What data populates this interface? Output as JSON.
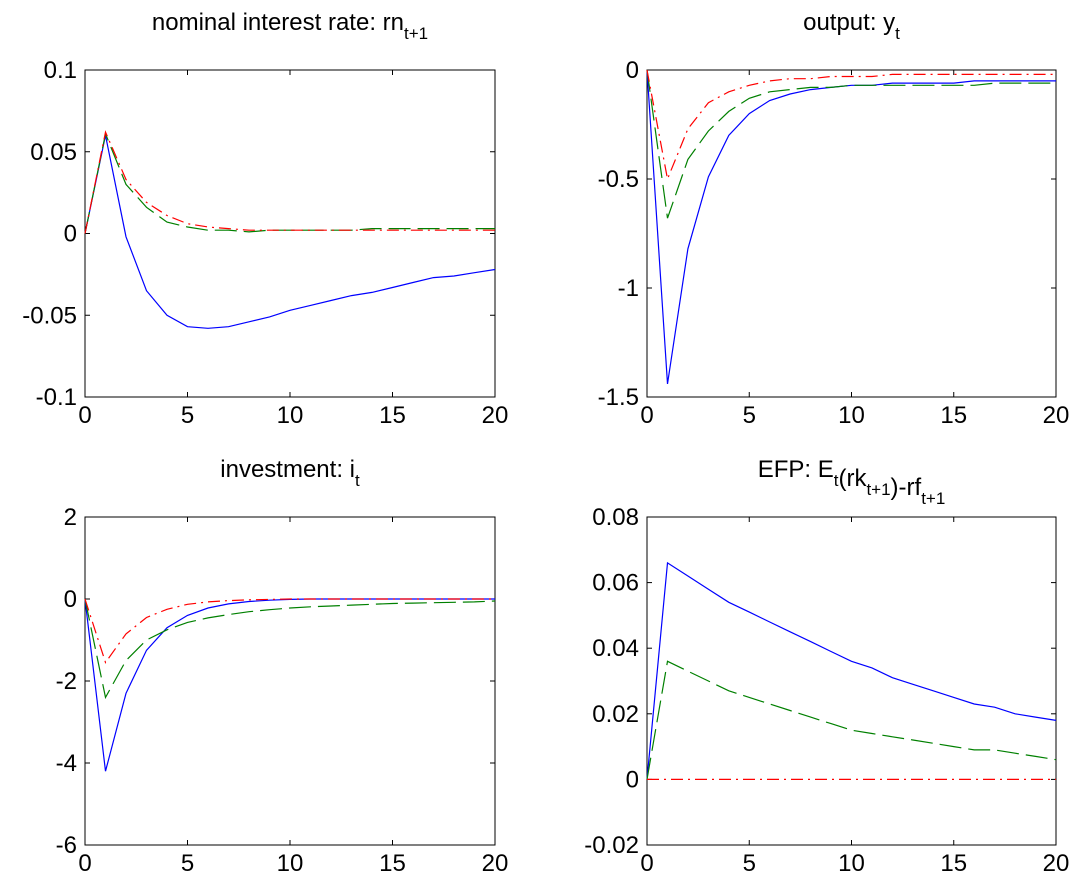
{
  "chart_data": [
    {
      "type": "line",
      "title": {
        "text": "nominal interest rate: rn",
        "sub": "t+1"
      },
      "xlim": [
        0,
        20
      ],
      "ylim": [
        -0.1,
        0.1
      ],
      "xticks": [
        0,
        5,
        10,
        15,
        20
      ],
      "xtick_labels": [
        "0",
        "5",
        "10",
        "15",
        "20"
      ],
      "yticks": [
        -0.1,
        -0.05,
        0,
        0.05,
        0.1
      ],
      "ytick_labels": [
        "-0.1",
        "-0.05",
        "0",
        "0.05",
        "0.1"
      ],
      "grid": false,
      "x": [
        0,
        1,
        2,
        3,
        4,
        5,
        6,
        7,
        8,
        9,
        10,
        11,
        12,
        13,
        14,
        15,
        16,
        17,
        18,
        19,
        20
      ],
      "series": [
        {
          "style": "solid",
          "color": "#0000ff",
          "values": [
            0,
            0.06,
            -0.002,
            -0.035,
            -0.05,
            -0.057,
            -0.058,
            -0.057,
            -0.054,
            -0.051,
            -0.047,
            -0.044,
            -0.041,
            -0.038,
            -0.036,
            -0.033,
            -0.03,
            -0.027,
            -0.026,
            -0.024,
            -0.022
          ]
        },
        {
          "style": "dashed",
          "color": "#008000",
          "values": [
            0,
            0.061,
            0.03,
            0.016,
            0.007,
            0.004,
            0.002,
            0.002,
            0.001,
            0.002,
            0.002,
            0.002,
            0.002,
            0.002,
            0.003,
            0.003,
            0.003,
            0.003,
            0.003,
            0.003,
            0.003
          ]
        },
        {
          "style": "dashdot",
          "color": "#ff0000",
          "values": [
            0,
            0.062,
            0.033,
            0.019,
            0.011,
            0.006,
            0.004,
            0.003,
            0.002,
            0.002,
            0.002,
            0.002,
            0.002,
            0.002,
            0.002,
            0.002,
            0.002,
            0.002,
            0.002,
            0.002,
            0.002
          ]
        }
      ]
    },
    {
      "type": "line",
      "title": {
        "text": "output: y",
        "sub": "t"
      },
      "xlim": [
        0,
        20
      ],
      "ylim": [
        -1.5,
        0
      ],
      "xticks": [
        0,
        5,
        10,
        15,
        20
      ],
      "xtick_labels": [
        "0",
        "5",
        "10",
        "15",
        "20"
      ],
      "yticks": [
        -1.5,
        -1,
        -0.5,
        0
      ],
      "ytick_labels": [
        "-1.5",
        "-1",
        "-0.5",
        "0"
      ],
      "grid": false,
      "x": [
        0,
        1,
        2,
        3,
        4,
        5,
        6,
        7,
        8,
        9,
        10,
        11,
        12,
        13,
        14,
        15,
        16,
        17,
        18,
        19,
        20
      ],
      "series": [
        {
          "style": "solid",
          "color": "#0000ff",
          "values": [
            0,
            -1.44,
            -0.82,
            -0.49,
            -0.3,
            -0.2,
            -0.14,
            -0.11,
            -0.09,
            -0.08,
            -0.07,
            -0.07,
            -0.06,
            -0.06,
            -0.06,
            -0.06,
            -0.05,
            -0.05,
            -0.05,
            -0.05,
            -0.05
          ]
        },
        {
          "style": "dashed",
          "color": "#008000",
          "values": [
            0,
            -0.68,
            -0.41,
            -0.28,
            -0.19,
            -0.13,
            -0.1,
            -0.09,
            -0.08,
            -0.08,
            -0.07,
            -0.07,
            -0.07,
            -0.07,
            -0.07,
            -0.07,
            -0.07,
            -0.06,
            -0.06,
            -0.06,
            -0.06
          ]
        },
        {
          "style": "dashdot",
          "color": "#ff0000",
          "values": [
            0,
            -0.5,
            -0.27,
            -0.15,
            -0.1,
            -0.07,
            -0.05,
            -0.04,
            -0.04,
            -0.03,
            -0.03,
            -0.03,
            -0.02,
            -0.02,
            -0.02,
            -0.02,
            -0.02,
            -0.02,
            -0.02,
            -0.02,
            -0.02
          ]
        }
      ]
    },
    {
      "type": "line",
      "title": {
        "text": "investment: i",
        "sub": "t"
      },
      "xlim": [
        0,
        20
      ],
      "ylim": [
        -6,
        2
      ],
      "xticks": [
        0,
        5,
        10,
        15,
        20
      ],
      "xtick_labels": [
        "0",
        "5",
        "10",
        "15",
        "20"
      ],
      "yticks": [
        -6,
        -4,
        -2,
        0,
        2
      ],
      "ytick_labels": [
        "-6",
        "-4",
        "-2",
        "0",
        "2"
      ],
      "grid": false,
      "x": [
        0,
        1,
        2,
        3,
        4,
        5,
        6,
        7,
        8,
        9,
        10,
        11,
        12,
        13,
        14,
        15,
        16,
        17,
        18,
        19,
        20
      ],
      "series": [
        {
          "style": "solid",
          "color": "#0000ff",
          "values": [
            0,
            -4.2,
            -2.3,
            -1.25,
            -0.7,
            -0.4,
            -0.22,
            -0.12,
            -0.06,
            -0.03,
            -0.01,
            0,
            0,
            0,
            0,
            0,
            0,
            0,
            0,
            0,
            0
          ]
        },
        {
          "style": "dashed",
          "color": "#008000",
          "values": [
            0,
            -2.4,
            -1.5,
            -1.0,
            -0.75,
            -0.57,
            -0.46,
            -0.38,
            -0.31,
            -0.26,
            -0.22,
            -0.19,
            -0.17,
            -0.15,
            -0.13,
            -0.11,
            -0.1,
            -0.09,
            -0.08,
            -0.07,
            -0.05
          ]
        },
        {
          "style": "dashdot",
          "color": "#ff0000",
          "values": [
            0,
            -1.55,
            -0.85,
            -0.45,
            -0.25,
            -0.13,
            -0.07,
            -0.04,
            -0.02,
            -0.01,
            0,
            0,
            0,
            0,
            0,
            0,
            0,
            0,
            0,
            0,
            0
          ]
        }
      ]
    },
    {
      "type": "line",
      "title": {
        "text": "EFP: E",
        "sub": "t",
        "text2": "(rk",
        "sub2": "t+1",
        "text3": ")-rf",
        "sub3": "t+1"
      },
      "xlim": [
        0,
        20
      ],
      "ylim": [
        -0.02,
        0.08
      ],
      "xticks": [
        0,
        5,
        10,
        15,
        20
      ],
      "xtick_labels": [
        "0",
        "5",
        "10",
        "15",
        "20"
      ],
      "yticks": [
        -0.02,
        0,
        0.02,
        0.04,
        0.06,
        0.08
      ],
      "ytick_labels": [
        "-0.02",
        "0",
        "0.02",
        "0.04",
        "0.06",
        "0.08"
      ],
      "grid": false,
      "x": [
        0,
        1,
        2,
        3,
        4,
        5,
        6,
        7,
        8,
        9,
        10,
        11,
        12,
        13,
        14,
        15,
        16,
        17,
        18,
        19,
        20
      ],
      "series": [
        {
          "style": "solid",
          "color": "#0000ff",
          "values": [
            0,
            0.066,
            0.062,
            0.058,
            0.054,
            0.051,
            0.048,
            0.045,
            0.042,
            0.039,
            0.036,
            0.034,
            0.031,
            0.029,
            0.027,
            0.025,
            0.023,
            0.022,
            0.02,
            0.019,
            0.018
          ]
        },
        {
          "style": "dashed",
          "color": "#008000",
          "values": [
            0,
            0.036,
            0.033,
            0.03,
            0.027,
            0.025,
            0.023,
            0.021,
            0.019,
            0.017,
            0.015,
            0.014,
            0.013,
            0.012,
            0.011,
            0.01,
            0.009,
            0.009,
            0.008,
            0.007,
            0.006
          ]
        },
        {
          "style": "dashdot",
          "color": "#ff0000",
          "values": [
            0,
            0,
            0,
            0,
            0,
            0,
            0,
            0,
            0,
            0,
            0,
            0,
            0,
            0,
            0,
            0,
            0,
            0,
            0,
            0,
            0
          ]
        }
      ]
    }
  ]
}
